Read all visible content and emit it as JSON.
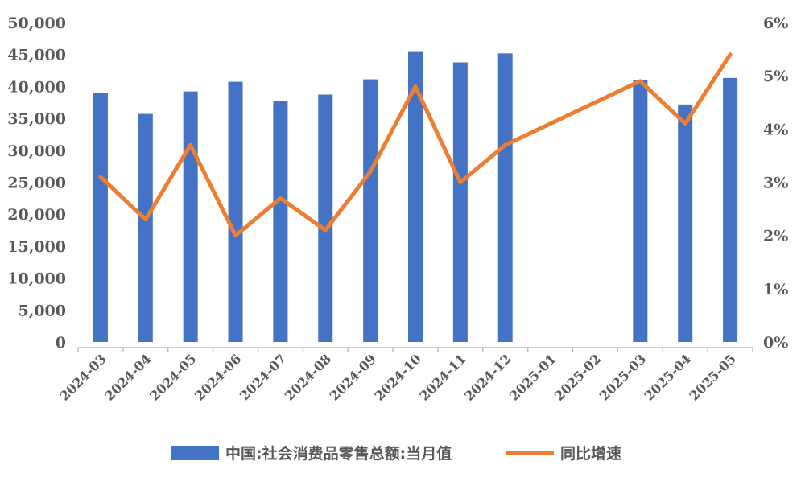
{
  "chart_data": {
    "type": "bar+line",
    "title": "",
    "categories": [
      "2024-03",
      "2024-04",
      "2024-05",
      "2024-06",
      "2024-07",
      "2024-08",
      "2024-09",
      "2024-10",
      "2024-11",
      "2024-12",
      "2025-01",
      "2025-02",
      "2025-03",
      "2025-04",
      "2025-05"
    ],
    "y_left": {
      "min": 0,
      "max": 50000,
      "ticks": [
        "0",
        "5,000",
        "10,000",
        "15,000",
        "20,000",
        "25,000",
        "30,000",
        "35,000",
        "40,000",
        "45,000",
        "50,000"
      ]
    },
    "y_right": {
      "min": 0,
      "max": 6,
      "ticks": [
        "0%",
        "1%",
        "2%",
        "3%",
        "4%",
        "5%",
        "6%"
      ]
    },
    "series": [
      {
        "name": "中国:社会消费品零售总额:当月值",
        "kind": "bar",
        "axis": "left",
        "color": "#4472C4",
        "values": [
          39020,
          35699,
          39211,
          40732,
          37757,
          38726,
          41112,
          45396,
          43763,
          45172,
          null,
          null,
          40940,
          37174,
          41326
        ]
      },
      {
        "name": "同比增速",
        "kind": "line",
        "axis": "right",
        "color": "#ED7D31",
        "values": [
          3.1,
          2.3,
          3.7,
          2.0,
          2.7,
          2.1,
          3.2,
          4.8,
          3.0,
          3.7,
          null,
          null,
          4.9,
          4.1,
          5.4
        ]
      }
    ],
    "legend": {
      "position": "bottom"
    },
    "grid": false
  }
}
